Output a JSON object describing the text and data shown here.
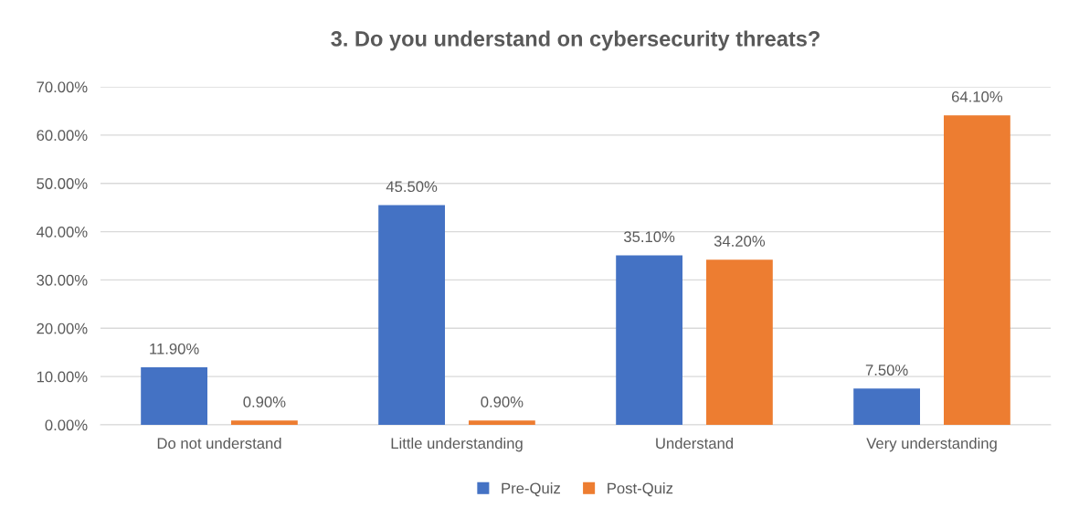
{
  "chart_data": {
    "type": "bar",
    "title": "3. Do you understand on cybersecurity threats?",
    "categories": [
      "Do not understand",
      "Little understanding",
      "Understand",
      "Very understanding"
    ],
    "series": [
      {
        "name": "Pre-Quiz",
        "color": "#4472c4",
        "values": [
          11.9,
          45.5,
          35.1,
          7.5
        ],
        "value_labels": [
          "11.90%",
          "45.50%",
          "35.10%",
          "7.50%"
        ]
      },
      {
        "name": "Post-Quiz",
        "color": "#ed7d31",
        "values": [
          0.9,
          0.9,
          34.2,
          64.1
        ],
        "value_labels": [
          "0.90%",
          "0.90%",
          "34.20%",
          "64.10%"
        ]
      }
    ],
    "ylim": [
      0,
      70
    ],
    "yticks": [
      {
        "value": 0,
        "label": "0.00%"
      },
      {
        "value": 10,
        "label": "10.00%"
      },
      {
        "value": 20,
        "label": "20.00%"
      },
      {
        "value": 30,
        "label": "30.00%"
      },
      {
        "value": 40,
        "label": "40.00%"
      },
      {
        "value": 50,
        "label": "50.00%"
      },
      {
        "value": 60,
        "label": "60.00%"
      },
      {
        "value": 70,
        "label": "70.00%"
      }
    ],
    "grid": "y",
    "legend": "bottom"
  }
}
